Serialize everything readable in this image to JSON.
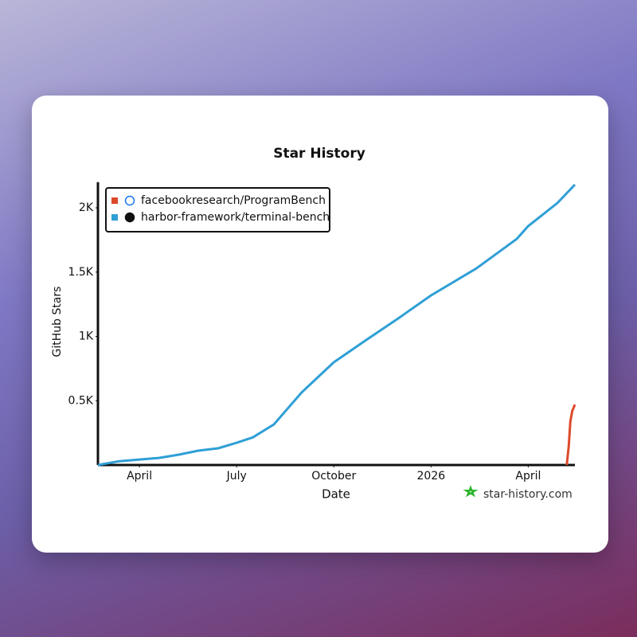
{
  "chart_data": {
    "type": "line",
    "title": "Star History",
    "x_label": "Date",
    "y_label": "GitHub Stars",
    "watermark": "star-history.com",
    "xlim": [
      1.72,
      16.44
    ],
    "xticks": [
      {
        "value": 3,
        "label": "April"
      },
      {
        "value": 6,
        "label": "July"
      },
      {
        "value": 9,
        "label": "October"
      },
      {
        "value": 12,
        "label": "2026"
      },
      {
        "value": 15,
        "label": "April"
      }
    ],
    "ylim": [
      0,
      2200
    ],
    "yticks": [
      {
        "value": 500,
        "label": "0.5K"
      },
      {
        "value": 1000,
        "label": "1K"
      },
      {
        "value": 1500,
        "label": "1.5K"
      },
      {
        "value": 2000,
        "label": "2K"
      }
    ],
    "legend": "top-left",
    "series": [
      {
        "name": "facebookresearch/ProgramBench",
        "color": "#dd4a2b",
        "x": [
          16.19,
          16.25,
          16.3,
          16.36,
          16.44
        ],
        "values": [
          0,
          150,
          340,
          420,
          470
        ]
      },
      {
        "name": "harbor-framework/terminal-bench",
        "color": "#2f9fd6",
        "x": [
          1.72,
          2.38,
          3,
          3.6,
          4.2,
          4.8,
          5.43,
          6,
          6.5,
          7.15,
          8,
          9,
          10,
          10.98,
          12,
          13.4,
          14.65,
          15,
          15.9,
          16.44
        ],
        "values": [
          0,
          30,
          43,
          55,
          80,
          111,
          130,
          173,
          215,
          316,
          563,
          799,
          972,
          1139,
          1319,
          1529,
          1759,
          1858,
          2037,
          2180
        ]
      }
    ]
  }
}
